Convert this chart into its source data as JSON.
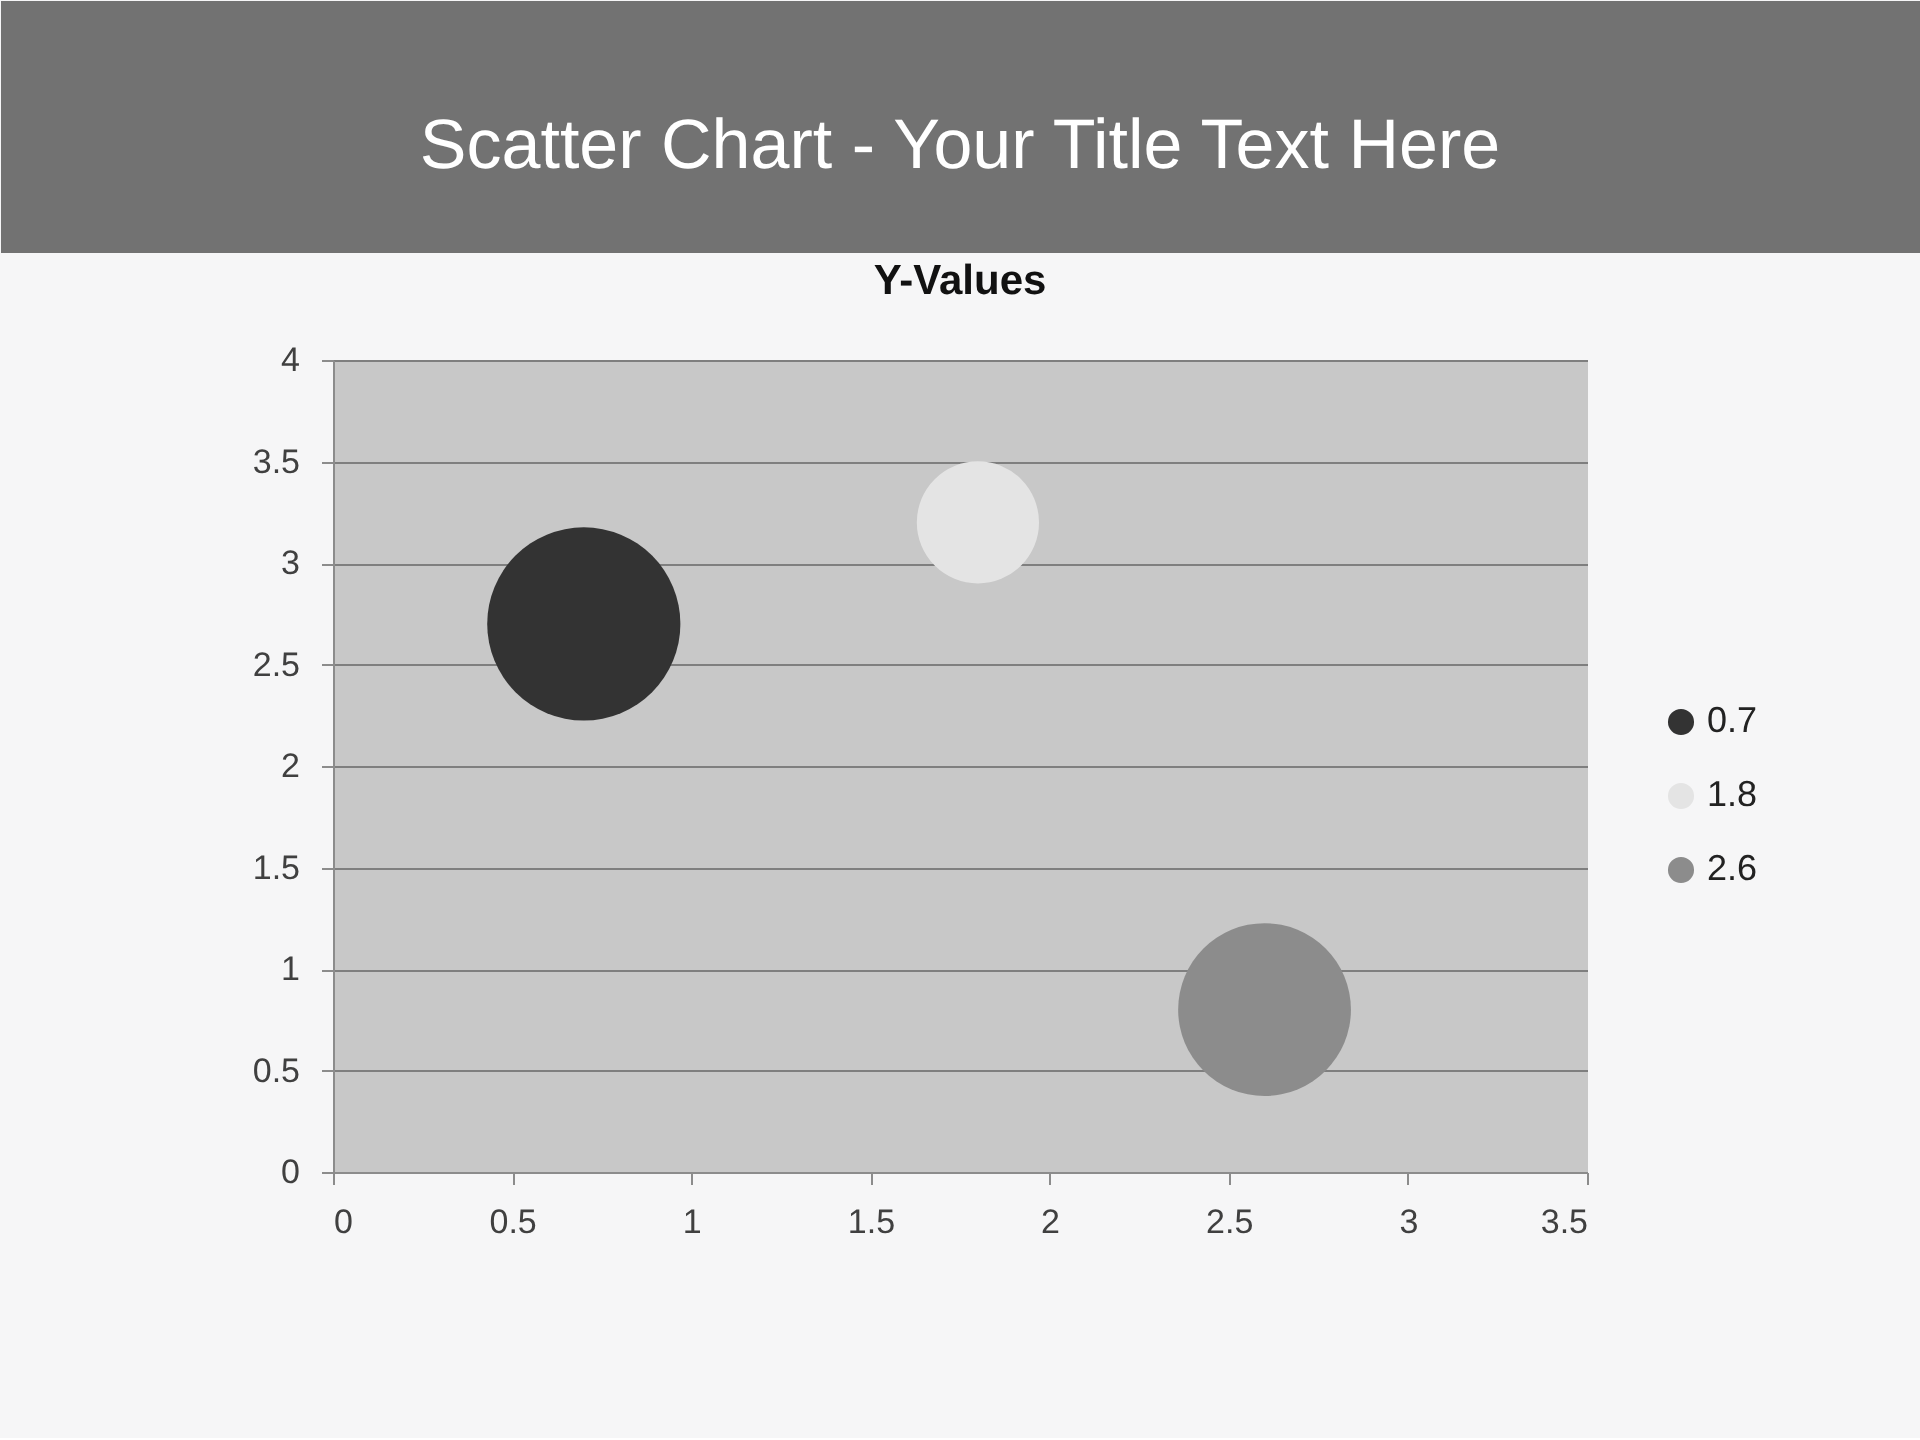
{
  "chart_data": {
    "type": "bubble",
    "title": "Scatter Chart - Your Title Text Here",
    "subtitle": "Y-Values",
    "series": [
      {
        "name": "0.7",
        "color": "#333333",
        "x": [
          0.7
        ],
        "values": [
          2.7
        ],
        "sizes": [
          1
        ]
      },
      {
        "name": "1.8",
        "color": "#e4e4e4",
        "x": [
          1.8
        ],
        "values": [
          3.2
        ],
        "sizes": [
          0.4
        ]
      },
      {
        "name": "2.6",
        "color": "#8c8c8c",
        "x": [
          2.6
        ],
        "values": [
          0.8
        ],
        "sizes": [
          0.8
        ]
      }
    ],
    "xlim": [
      0,
      3.5
    ],
    "xticks": [
      0,
      0.5,
      1,
      1.5,
      2,
      2.5,
      3,
      3.5
    ],
    "ylim": [
      0,
      4
    ],
    "yticks": [
      0,
      0.5,
      1,
      1.5,
      2,
      2.5,
      3,
      3.5,
      4
    ],
    "grid": "y",
    "legend": "right"
  }
}
